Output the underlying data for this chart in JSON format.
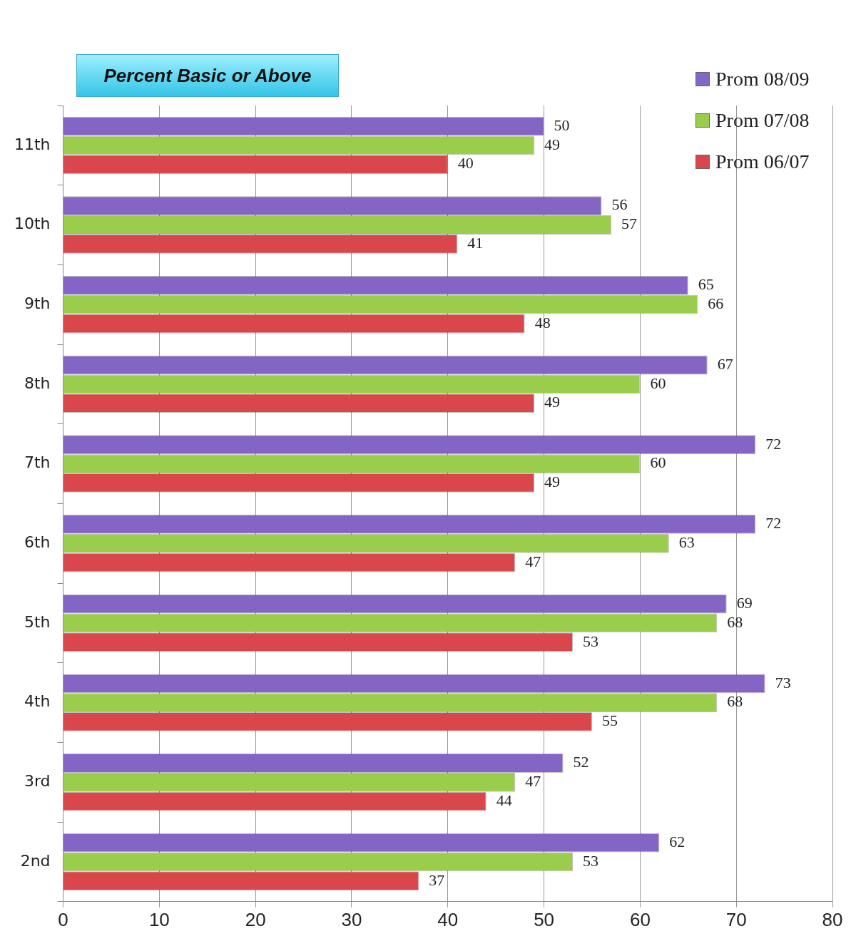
{
  "chart_data": {
    "type": "bar",
    "orientation": "horizontal",
    "title": "Percent Basic or Above",
    "categories": [
      "11th",
      "10th",
      "9th",
      "8th",
      "7th",
      "6th",
      "5th",
      "4th",
      "3rd",
      "2nd"
    ],
    "series": [
      {
        "name": "Prom 08/09",
        "color": "#8464c4",
        "values": [
          50,
          56,
          65,
          67,
          72,
          72,
          69,
          73,
          52,
          62
        ]
      },
      {
        "name": "Prom 07/08",
        "color": "#9acd4c",
        "values": [
          49,
          57,
          66,
          60,
          60,
          63,
          68,
          68,
          47,
          53
        ]
      },
      {
        "name": "Prom 06/07",
        "color": "#d9474c",
        "values": [
          40,
          41,
          48,
          49,
          49,
          47,
          53,
          55,
          44,
          37
        ]
      }
    ],
    "xlim": [
      0,
      80
    ],
    "xticks": [
      0,
      10,
      20,
      30,
      40,
      50,
      60,
      70,
      80
    ],
    "grid": "x",
    "legend": "top right",
    "data_labels": true
  }
}
